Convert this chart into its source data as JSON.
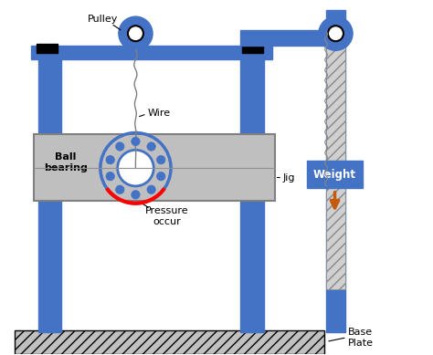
{
  "bg_color": "#ffffff",
  "blue": "#4472C4",
  "dark_blue": "#2F5496",
  "gray": "#BFBFBF",
  "orange": "#C55A11",
  "red": "#FF0000",
  "black": "#000000",
  "hatch_gray": "#A0A0A0",
  "title": "",
  "labels": {
    "pulley": "Pulley",
    "wire": "Wire",
    "jig": "Jig",
    "ball_bearing": "Ball\nbearing",
    "pressure": "Pressure\noccur",
    "weight": "Weight",
    "base_plate": "Base\nPlate"
  },
  "figsize": [
    4.74,
    3.89
  ],
  "dpi": 100
}
